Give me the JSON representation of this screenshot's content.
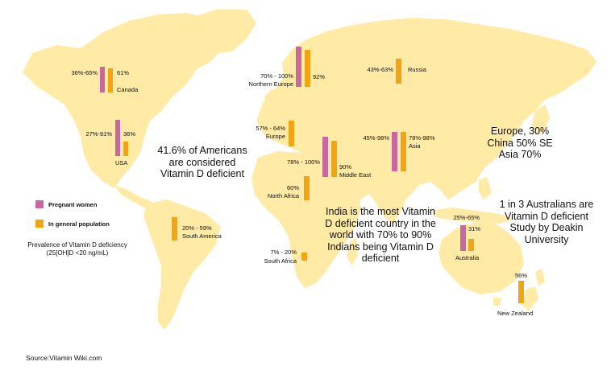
{
  "colors": {
    "land": "#FFEAA6",
    "pregnant": "#C9679F",
    "general": "#F2A513",
    "text": "#111111"
  },
  "regions": [
    {
      "id": "canada",
      "name": "Canada",
      "pregnant_label": "36%-65%",
      "general_label": "61%",
      "pregnant_value": 65,
      "general_value": 61
    },
    {
      "id": "usa",
      "name": "USA",
      "pregnant_label": "27%-91%",
      "general_label": "36%",
      "pregnant_value": 91,
      "general_value": 36
    },
    {
      "id": "northern-europe",
      "name": "Northern Europe",
      "pregnant_label": "70% - 100%",
      "general_label": "92%",
      "pregnant_value": 100,
      "general_value": 92
    },
    {
      "id": "russia",
      "name": "Russia",
      "general_label": "43%-63%",
      "general_value": 63
    },
    {
      "id": "europe",
      "name": "Europe",
      "general_label": "57% - 64%",
      "general_value": 64
    },
    {
      "id": "asia",
      "name": "Asia",
      "pregnant_label": "45%-98%",
      "general_label": "78%-98%",
      "pregnant_value": 98,
      "general_value": 98
    },
    {
      "id": "middle-east",
      "name": "Middle East",
      "pregnant_label": "78% - 100%",
      "general_label": "90%",
      "pregnant_value": 100,
      "general_value": 90
    },
    {
      "id": "north-africa",
      "name": "North Africa",
      "general_label": "60%",
      "general_value": 60
    },
    {
      "id": "south-america",
      "name": "South America",
      "general_label": "20% - 59%",
      "general_value": 59
    },
    {
      "id": "south-africa",
      "name": "South Africa",
      "general_label": "7% - 20%",
      "general_value": 20
    },
    {
      "id": "australia",
      "name": "Australia",
      "pregnant_label": "25%-65%",
      "general_label": "31%",
      "pregnant_value": 65,
      "general_value": 31
    },
    {
      "id": "new-zealand",
      "name": "New Zealand",
      "general_label": "56%",
      "general_value": 56
    }
  ],
  "callouts": {
    "americans": "41.6% of Americans are considered Vitamin D deficient",
    "india": "India is the most Vitamin D deficient country in the world with 70% to 90% Indians being Vitamin D deficient",
    "asia_stats": "Europe, 30% China 50% SE Asia 70%",
    "australians": "1 in 3 Australians are Vitamin D deficient Study by Deakin University"
  },
  "legend": {
    "pregnant": "Pregnant women",
    "general": "In general population",
    "note": "Prevalence of Vitamin D deficiency (25[OH]D <20 ng/mL)"
  },
  "source": "Source:Vitamin Wiki.com"
}
